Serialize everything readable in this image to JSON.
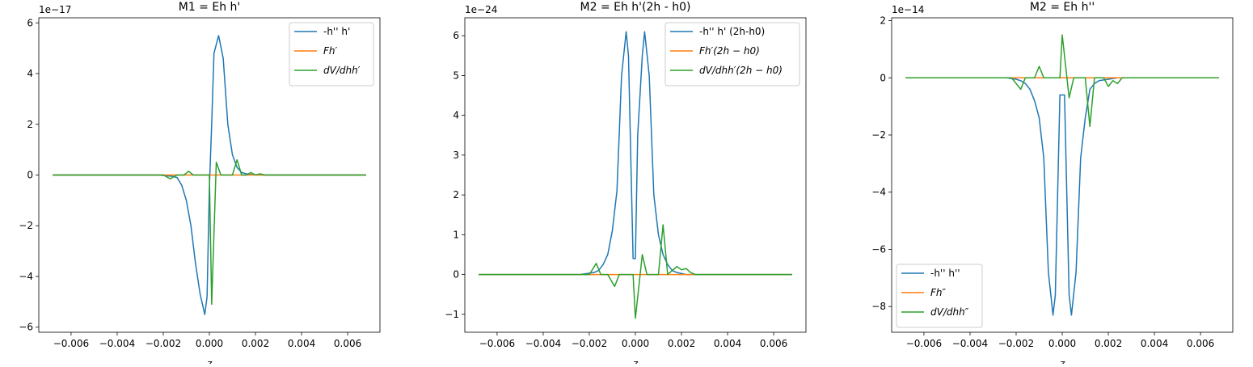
{
  "colors": {
    "blue": "#1f77b4",
    "orange": "#ff7f0e",
    "green": "#2ca02c"
  },
  "chart_data": [
    {
      "type": "line",
      "title": "M1 = Eh h'",
      "xlabel": "z",
      "ylabel": "",
      "offset_text": "1e−17",
      "xlim": [
        -0.0074,
        0.0074
      ],
      "ylim": [
        -6.2,
        6.2
      ],
      "xticks": [
        -0.006,
        -0.004,
        -0.002,
        0.0,
        0.002,
        0.004,
        0.006
      ],
      "xtick_labels": [
        "−0.006",
        "−0.004",
        "−0.002",
        "0.000",
        "0.002",
        "0.004",
        "0.006"
      ],
      "yticks": [
        -6,
        -4,
        -2,
        0,
        2,
        4,
        6
      ],
      "ytick_labels": [
        "−6",
        "−4",
        "−2",
        "0",
        "2",
        "4",
        "6"
      ],
      "legend_loc": "upper right",
      "series": [
        {
          "name": "-h'' h'",
          "color": "#1f77b4",
          "x": [
            -0.0068,
            -0.0022,
            -0.0016,
            -0.0014,
            -0.0012,
            -0.001,
            -0.0008,
            -0.0006,
            -0.0004,
            -0.0002,
            -0.0001,
            0.0,
            0.0001,
            0.0002,
            0.0004,
            0.0006,
            0.0008,
            0.001,
            0.0012,
            0.0014,
            0.0016,
            0.0018,
            0.002,
            0.0022,
            0.0068
          ],
          "y": [
            0,
            0,
            -0.05,
            -0.1,
            -0.4,
            -1.0,
            -2.0,
            -3.5,
            -4.7,
            -5.5,
            -4.8,
            -0.5,
            2.0,
            4.8,
            5.5,
            4.6,
            2.0,
            0.8,
            0.3,
            0.1,
            0.05,
            0.02,
            0.01,
            0.0,
            0
          ]
        },
        {
          "name": "Fh′",
          "color": "#ff7f0e",
          "x": [
            -0.0068,
            0.0068
          ],
          "y": [
            0,
            0
          ]
        },
        {
          "name": "dV/dhh′",
          "color": "#2ca02c",
          "x": [
            -0.0068,
            -0.002,
            -0.0017,
            -0.0014,
            -0.0011,
            -0.0009,
            -0.0007,
            0.0,
            0.0001,
            0.0003,
            0.0005,
            0.001,
            0.0012,
            0.0014,
            0.0016,
            0.0018,
            0.002,
            0.0022,
            0.0024,
            0.0068
          ],
          "y": [
            0,
            0,
            -0.15,
            0,
            0,
            0.15,
            0,
            0,
            -5.1,
            0.5,
            0,
            0,
            0.6,
            0,
            0,
            0.1,
            0,
            0.05,
            0,
            0
          ]
        }
      ]
    },
    {
      "type": "line",
      "title": "M2 = Eh h'(2h - h0)",
      "xlabel": "z",
      "ylabel": "",
      "offset_text": "1e−24",
      "xlim": [
        -0.0074,
        0.0074
      ],
      "ylim": [
        -1.45,
        6.45
      ],
      "xticks": [
        -0.006,
        -0.004,
        -0.002,
        0.0,
        0.002,
        0.004,
        0.006
      ],
      "xtick_labels": [
        "−0.006",
        "−0.004",
        "−0.002",
        "0.000",
        "0.002",
        "0.004",
        "0.006"
      ],
      "yticks": [
        -1,
        0,
        1,
        2,
        3,
        4,
        5,
        6
      ],
      "ytick_labels": [
        "−1",
        "0",
        "1",
        "2",
        "3",
        "4",
        "5",
        "6"
      ],
      "legend_loc": "upper right",
      "series": [
        {
          "name": "-h'' h' (2h-h0)",
          "color": "#1f77b4",
          "x": [
            -0.0068,
            -0.0024,
            -0.0018,
            -0.0016,
            -0.0014,
            -0.0012,
            -0.001,
            -0.0008,
            -0.0006,
            -0.0004,
            -0.0003,
            -0.0001,
            0.0,
            0.0001,
            0.0003,
            0.0004,
            0.0006,
            0.0008,
            0.001,
            0.0012,
            0.0014,
            0.0016,
            0.0018,
            0.0022,
            0.0068
          ],
          "y": [
            0,
            0,
            0.05,
            0.1,
            0.25,
            0.5,
            1.1,
            2.1,
            5.0,
            6.1,
            5.5,
            0.4,
            0.4,
            3.5,
            5.5,
            6.1,
            5.0,
            2.0,
            1.0,
            0.5,
            0.25,
            0.1,
            0.05,
            0.0,
            0
          ]
        },
        {
          "name": "Fh′(2h − h0)",
          "color": "#ff7f0e",
          "x": [
            -0.0068,
            0.0068
          ],
          "y": [
            0,
            0
          ]
        },
        {
          "name": "dV/dhh′(2h − h0)",
          "color": "#2ca02c",
          "x": [
            -0.0068,
            -0.002,
            -0.0017,
            -0.0015,
            -0.0012,
            -0.0009,
            -0.0007,
            -0.0001,
            0.0,
            0.0003,
            0.0005,
            0.001,
            0.0012,
            0.0014,
            0.0018,
            0.002,
            0.0022,
            0.0024,
            0.0026,
            0.0068
          ],
          "y": [
            0,
            0,
            0.28,
            0,
            0,
            -0.3,
            0,
            0,
            -1.1,
            0.5,
            0,
            0,
            1.25,
            0,
            0.2,
            0.12,
            0.15,
            0.05,
            0,
            0
          ]
        }
      ]
    },
    {
      "type": "line",
      "title": "M2 = Eh h''",
      "xlabel": "z",
      "ylabel": "",
      "offset_text": "1e−14",
      "xlim": [
        -0.0074,
        0.0074
      ],
      "ylim": [
        -8.9,
        2.1
      ],
      "xticks": [
        -0.006,
        -0.004,
        -0.002,
        0.0,
        0.002,
        0.004,
        0.006
      ],
      "xtick_labels": [
        "−0.006",
        "−0.004",
        "−0.002",
        "0.000",
        "0.002",
        "0.004",
        "0.006"
      ],
      "yticks": [
        -8,
        -6,
        -4,
        -2,
        0,
        2
      ],
      "ytick_labels": [
        "−8",
        "−6",
        "−4",
        "−2",
        "0",
        "2"
      ],
      "legend_loc": "lower left",
      "series": [
        {
          "name": "-h'' h''",
          "color": "#1f77b4",
          "x": [
            -0.0068,
            -0.0024,
            -0.002,
            -0.0018,
            -0.0016,
            -0.0014,
            -0.0012,
            -0.001,
            -0.0008,
            -0.0006,
            -0.0004,
            -0.0003,
            -0.0001,
            0.0,
            0.0001,
            0.0003,
            0.0004,
            0.0006,
            0.0008,
            0.001,
            0.0012,
            0.0014,
            0.0016,
            0.002,
            0.0024,
            0.0068
          ],
          "y": [
            0,
            0,
            -0.05,
            -0.1,
            -0.2,
            -0.4,
            -0.8,
            -1.4,
            -2.8,
            -6.8,
            -8.3,
            -7.6,
            -0.6,
            -0.6,
            -0.6,
            -7.6,
            -8.3,
            -6.8,
            -2.8,
            -1.4,
            -0.4,
            -0.2,
            -0.1,
            -0.05,
            0.0,
            0
          ]
        },
        {
          "name": "Fh″",
          "color": "#ff7f0e",
          "x": [
            -0.0068,
            0.0068
          ],
          "y": [
            0,
            0
          ]
        },
        {
          "name": "dV/dhh″",
          "color": "#2ca02c",
          "x": [
            -0.0068,
            -0.0022,
            -0.0018,
            -0.0016,
            -0.0012,
            -0.001,
            -0.0008,
            -0.0001,
            0.0,
            0.0003,
            0.0005,
            0.001,
            0.0012,
            0.0014,
            0.0018,
            0.002,
            0.0022,
            0.0024,
            0.0026,
            0.0068
          ],
          "y": [
            0,
            0,
            -0.4,
            0,
            0,
            0.4,
            0,
            0,
            1.5,
            -0.7,
            0,
            0,
            -1.7,
            0,
            0,
            -0.3,
            -0.1,
            -0.2,
            0,
            0
          ]
        }
      ]
    }
  ]
}
